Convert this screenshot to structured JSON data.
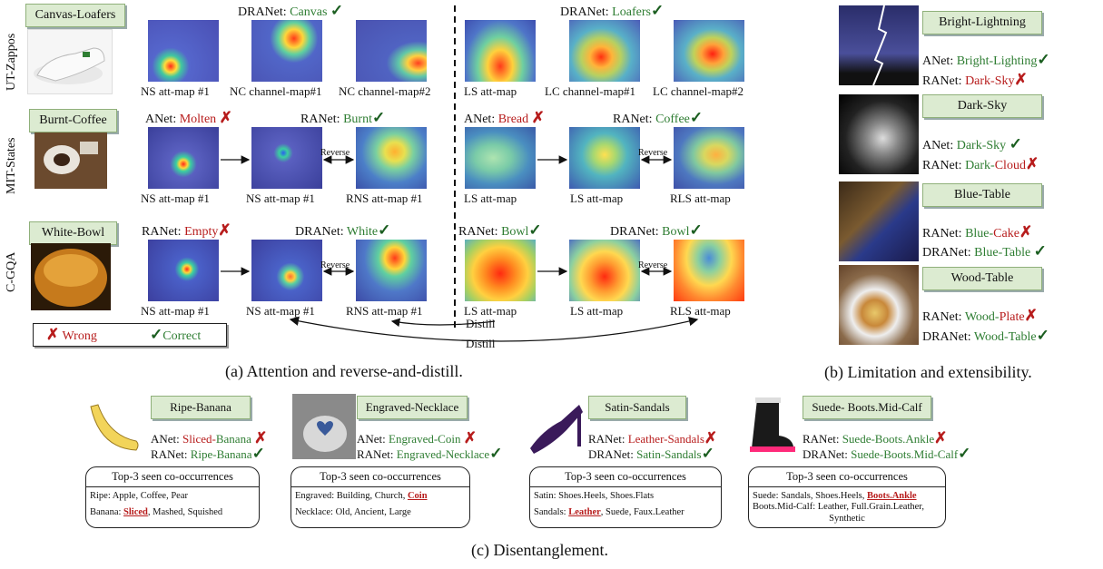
{
  "panel_a": {
    "caption": "(a) Attention and reverse-and-distill.",
    "rows": [
      {
        "dataset": "UT-Zappos",
        "sample": "Canvas-Loafers",
        "left_pred": {
          "model": "DRANet: ",
          "word": "Canvas",
          "mark": "✓"
        },
        "right_pred": {
          "model": "DRANet: ",
          "word": "Loafers",
          "mark": "✓"
        },
        "maps": [
          "NS att-map #1",
          "NC channel-map#1",
          "NC channel-map#2",
          "LS att-map",
          "LC channel-map#1",
          "LC channel-map#2"
        ]
      },
      {
        "dataset": "MIT-States",
        "sample": "Burnt-Coffee",
        "preds": [
          {
            "model": "ANet: ",
            "word": "Molten",
            "mark": "✗"
          },
          {
            "model": "RANet: ",
            "word": "Burnt",
            "mark": "✓"
          },
          {
            "model": "ANet: ",
            "word": "Bread",
            "mark": "✗"
          },
          {
            "model": "RANet: ",
            "word": "Coffee",
            "mark": "✓"
          }
        ],
        "maps": [
          "NS att-map #1",
          "NS att-map #1",
          "RNS att-map #1",
          "LS att-map",
          "LS att-map",
          "RLS att-map"
        ],
        "reverse": "Reverse"
      },
      {
        "dataset": "C-GQA",
        "sample": "White-Bowl",
        "preds": [
          {
            "model": "RANet: ",
            "word": "Empty",
            "mark": "✗"
          },
          {
            "model": "DRANet: ",
            "word": "White",
            "mark": "✓"
          },
          {
            "model": "RANet: ",
            "word": "Bowl",
            "mark": "✓"
          },
          {
            "model": "DRANet: ",
            "word": "Bowl",
            "mark": "✓"
          }
        ],
        "maps": [
          "NS att-map #1",
          "NS att-map #1",
          "RNS att-map #1",
          "LS att-map",
          "LS att-map",
          "RLS att-map"
        ],
        "reverse": "Reverse"
      }
    ],
    "distill": "Distill",
    "legend": {
      "wrong_mark": "✗",
      "wrong": "Wrong",
      "correct_mark": "✓",
      "correct": "Correct"
    }
  },
  "panel_b": {
    "caption": "(b) Limitation and extensibility.",
    "items": [
      {
        "label": "Bright-Lightning",
        "preds": [
          {
            "model": "ANet: ",
            "w1": "Bright-Lighting",
            "w1c": "g",
            "w2": "",
            "w2c": "g",
            "mark": "✓"
          },
          {
            "model": "RANet: ",
            "w1": "Dark-Sky",
            "w1c": "r",
            "w2": "",
            "w2c": "r",
            "mark": "✗"
          }
        ]
      },
      {
        "label": "Dark-Sky",
        "preds": [
          {
            "model": "ANet: ",
            "w1": "Dark-Sky",
            "w1c": "g",
            "w2": "",
            "w2c": "g",
            "mark": "✓"
          },
          {
            "model": "RANet: ",
            "w1": "Dark-",
            "w1c": "g",
            "w2": "Cloud",
            "w2c": "r",
            "mark": "✗"
          }
        ]
      },
      {
        "label": "Blue-Table",
        "preds": [
          {
            "model": "RANet: ",
            "w1": "Blue-",
            "w1c": "g",
            "w2": "Cake",
            "w2c": "r",
            "mark": "✗"
          },
          {
            "model": "DRANet: ",
            "w1": "Blue-Table",
            "w1c": "g",
            "w2": "",
            "w2c": "g",
            "mark": "✓"
          }
        ]
      },
      {
        "label": "Wood-Table",
        "preds": [
          {
            "model": "RANet: ",
            "w1": "Wood-",
            "w1c": "g",
            "w2": "Plate",
            "w2c": "r",
            "mark": "✗"
          },
          {
            "model": "DRANet: ",
            "w1": "Wood-Table",
            "w1c": "g",
            "w2": "",
            "w2c": "g",
            "mark": "✓"
          }
        ]
      }
    ]
  },
  "panel_c": {
    "caption": "(c) Disentanglement.",
    "table_title": "Top-3 seen co-occurrences",
    "items": [
      {
        "label": "Ripe-Banana",
        "preds": [
          {
            "model": "ANet: ",
            "w1": "Sliced-",
            "w1c": "r",
            "w2": "Banana",
            "w2c": "g",
            "mark": "✗"
          },
          {
            "model": "RANet: ",
            "w1": "Ripe-Banana",
            "w1c": "g",
            "w2": "",
            "w2c": "g",
            "mark": "✓"
          }
        ],
        "rows": [
          {
            "pre": "Ripe: Apple, Coffee, Pear",
            "hl": "",
            "post": ""
          },
          {
            "pre": "Banana: ",
            "hl": "Sliced",
            "post": ", Mashed, Squished"
          }
        ]
      },
      {
        "label": "Engraved-Necklace",
        "preds": [
          {
            "model": "ANet: ",
            "w1": "Engraved-Coin",
            "w1c": "g",
            "w2": "",
            "w2c": "g",
            "mark": "✗"
          },
          {
            "model": "RANet: ",
            "w1": "Engraved-Necklace",
            "w1c": "g",
            "w2": "",
            "w2c": "g",
            "mark": "✓"
          }
        ],
        "rows": [
          {
            "pre": "Engraved: Building, Church, ",
            "hl": "Coin",
            "post": ""
          },
          {
            "pre": "Necklace: Old, Ancient, Large",
            "hl": "",
            "post": ""
          }
        ]
      },
      {
        "label": "Satin-Sandals",
        "preds": [
          {
            "model": "RANet: ",
            "w1": "Leather-Sandals",
            "w1c": "r",
            "w2": "",
            "w2c": "r",
            "mark": "✗"
          },
          {
            "model": "DRANet: ",
            "w1": "Satin-Sandals",
            "w1c": "g",
            "w2": "",
            "w2c": "g",
            "mark": "✓"
          }
        ],
        "rows": [
          {
            "pre": "Satin: Shoes.Heels, Shoes.Flats",
            "hl": "",
            "post": ""
          },
          {
            "pre": "Sandals: ",
            "hl": "Leather",
            "post": ", Suede, Faux.Leather"
          }
        ]
      },
      {
        "label": "Suede- Boots.Mid-Calf",
        "preds": [
          {
            "model": "RANet: ",
            "w1": "Suede-Boots.Ankle",
            "w1c": "g",
            "w2": "",
            "w2c": "g",
            "mark": "✗"
          },
          {
            "model": "DRANet: ",
            "w1": "Suede-Boots.Mid-Calf",
            "w1c": "g",
            "w2": "",
            "w2c": "g",
            "mark": "✓"
          }
        ],
        "rows": [
          {
            "pre": "Suede: Sandals, Shoes.Heels, ",
            "hl": "Boots.Ankle",
            "post": ""
          },
          {
            "pre": "Boots.Mid-Calf: Leather, Full.Grain.Leather,",
            "hl": "",
            "post": ""
          },
          {
            "pre": "Synthetic",
            "hl": "",
            "post": ""
          }
        ]
      }
    ]
  }
}
